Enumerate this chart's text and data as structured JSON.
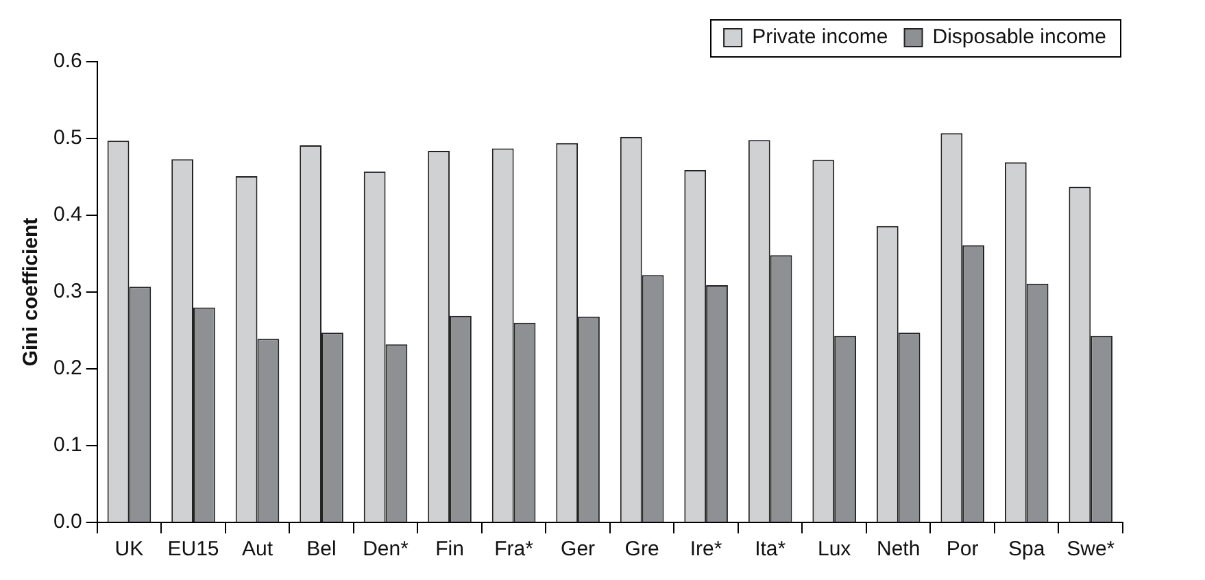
{
  "chart_data": {
    "type": "bar",
    "ylabel": "Gini coefficient",
    "categories": [
      "UK",
      "EU15",
      "Aut",
      "Bel",
      "Den*",
      "Fin",
      "Fra*",
      "Ger",
      "Gre",
      "Ire*",
      "Ita*",
      "Lux",
      "Neth",
      "Por",
      "Spa",
      "Swe*"
    ],
    "series": [
      {
        "name": "Private income",
        "color": "#d0d1d3",
        "values": [
          0.497,
          0.473,
          0.451,
          0.491,
          0.457,
          0.484,
          0.487,
          0.494,
          0.502,
          0.459,
          0.498,
          0.472,
          0.386,
          0.507,
          0.469,
          0.437
        ]
      },
      {
        "name": "Disposable income",
        "color": "#8e9094",
        "values": [
          0.307,
          0.28,
          0.239,
          0.247,
          0.232,
          0.269,
          0.26,
          0.268,
          0.322,
          0.309,
          0.348,
          0.243,
          0.247,
          0.361,
          0.311,
          0.243
        ]
      }
    ],
    "ylim": [
      0,
      0.6
    ],
    "yticks": [
      {
        "value": 0,
        "label": "0.0"
      },
      {
        "value": 0.1,
        "label": "0.1"
      },
      {
        "value": 0.2,
        "label": "0.2"
      },
      {
        "value": 0.3,
        "label": "0.3"
      },
      {
        "value": 0.4,
        "label": "0.4"
      },
      {
        "value": 0.5,
        "label": "0.5"
      },
      {
        "value": 0.6,
        "label": "0.6"
      }
    ],
    "grid": false,
    "legend": "top right"
  }
}
